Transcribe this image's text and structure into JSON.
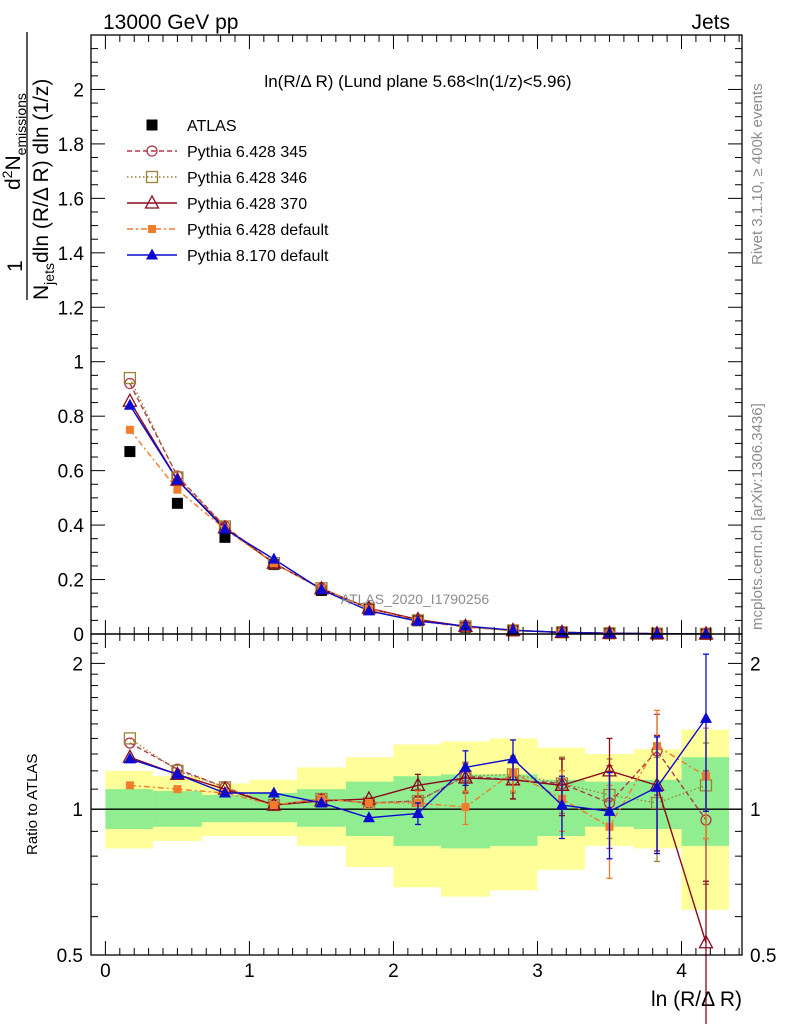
{
  "header": {
    "left": "13000 GeV pp",
    "right": "Jets"
  },
  "side_labels": {
    "rivet": "Rivet 3.1.10, ≥ 400k events",
    "mcplots": "mcplots.cern.ch [arXiv:1306.3436]"
  },
  "watermark": "ATLAS_2020_I1790256",
  "chart_data": [
    {
      "type": "line",
      "title": "ln(R/Δ R) (Lund plane 5.68<ln(1/z)<5.96)",
      "ylabel_parts": {
        "one": "1",
        "njets": "N",
        "njets_sub": "jets",
        "dln": "dln (R/Δ R) dln (1/z)",
        "d2": "d",
        "d2_sup": "2",
        "nem": "N",
        "nem_sub": "emissions"
      },
      "xlim": [
        -0.1,
        4.42
      ],
      "ylim": [
        0,
        2.2
      ],
      "yticks": [
        {
          "v": 0.2,
          "label": "0.2"
        },
        {
          "v": 0.4,
          "label": "0.4"
        },
        {
          "v": 0.6,
          "label": "0.6"
        },
        {
          "v": 0.8,
          "label": "0.8"
        },
        {
          "v": 1.0,
          "label": "1"
        },
        {
          "v": 1.2,
          "label": "1.2"
        },
        {
          "v": 1.4,
          "label": "1.4"
        },
        {
          "v": 1.6,
          "label": "1.6"
        },
        {
          "v": 1.8,
          "label": "1.8"
        },
        {
          "v": 2.0,
          "label": "2"
        },
        {
          "v": 0.0,
          "label": "0"
        }
      ],
      "x": [
        0.17,
        0.5,
        0.83,
        1.17,
        1.5,
        1.83,
        2.17,
        2.5,
        2.83,
        3.17,
        3.5,
        3.83,
        4.17
      ],
      "series": [
        {
          "name": "ATLAS",
          "marker": "square-filled",
          "color": "#000000",
          "dash": "none",
          "values": [
            0.67,
            0.48,
            0.355,
            0.255,
            0.16,
            0.09,
            0.048,
            0.024,
            0.011,
            0.0055,
            0.0025,
            0.0012,
            0.0005
          ]
        },
        {
          "name": "Pythia 6.428 345",
          "marker": "circle-open",
          "color": "#b0384c",
          "dash": "5,3",
          "values": [
            0.92,
            0.58,
            0.395,
            0.26,
            0.168,
            0.093,
            0.05,
            0.028,
            0.013,
            0.0062,
            0.0026,
            0.0016,
            0.0005
          ]
        },
        {
          "name": "Pythia 6.428 346",
          "marker": "square-open",
          "color": "#9c8238",
          "dash": "1.5,2.5",
          "values": [
            0.94,
            0.575,
            0.395,
            0.26,
            0.168,
            0.093,
            0.05,
            0.028,
            0.013,
            0.0062,
            0.0027,
            0.0012,
            0.0006
          ]
        },
        {
          "name": "Pythia 6.428 370",
          "marker": "triangle-open",
          "color": "#8b0a1e",
          "dash": "none",
          "values": [
            0.855,
            0.565,
            0.39,
            0.26,
            0.166,
            0.095,
            0.053,
            0.028,
            0.013,
            0.0062,
            0.003,
            0.0013,
            0.0003
          ]
        },
        {
          "name": "Pythia 6.428 default",
          "marker": "square-filled-small",
          "color": "#f07c2c",
          "dash": "6,3,2,3",
          "values": [
            0.75,
            0.53,
            0.385,
            0.26,
            0.167,
            0.093,
            0.049,
            0.024,
            0.013,
            0.0058,
            0.0023,
            0.0016,
            0.0006
          ]
        },
        {
          "name": "Pythia 8.170 default",
          "marker": "triangle-filled",
          "color": "#0a0ad0",
          "dash": "none",
          "values": [
            0.84,
            0.565,
            0.385,
            0.275,
            0.163,
            0.085,
            0.047,
            0.029,
            0.014,
            0.0055,
            0.0025,
            0.0013,
            0.0008
          ]
        }
      ]
    },
    {
      "type": "line",
      "xlabel": "ln (R/Δ R)",
      "ylabel": "Ratio to ATLAS",
      "xlim": [
        -0.1,
        4.42
      ],
      "ylim": [
        0.5,
        2.3
      ],
      "log_y": true,
      "xticks": [
        {
          "v": 0,
          "label": "0"
        },
        {
          "v": 1,
          "label": "1"
        },
        {
          "v": 2,
          "label": "2"
        },
        {
          "v": 3,
          "label": "3"
        },
        {
          "v": 4,
          "label": "4"
        }
      ],
      "yticks": [
        {
          "v": 0.5,
          "label": "0.5"
        },
        {
          "v": 1,
          "label": "1"
        },
        {
          "v": 2,
          "label": "2"
        }
      ],
      "bin_edges": [
        0.0,
        0.33,
        0.67,
        1.0,
        1.33,
        1.67,
        2.0,
        2.33,
        2.67,
        3.0,
        3.33,
        3.67,
        4.0,
        4.33
      ],
      "band_yellow": [
        [
          0.83,
          1.2
        ],
        [
          0.86,
          1.17
        ],
        [
          0.88,
          1.13
        ],
        [
          0.88,
          1.15
        ],
        [
          0.84,
          1.22
        ],
        [
          0.76,
          1.28
        ],
        [
          0.69,
          1.36
        ],
        [
          0.66,
          1.38
        ],
        [
          0.68,
          1.4
        ],
        [
          0.75,
          1.34
        ],
        [
          0.84,
          1.3
        ],
        [
          0.83,
          1.33
        ],
        [
          0.62,
          1.46
        ]
      ],
      "band_green": [
        [
          0.91,
          1.1
        ],
        [
          0.92,
          1.09
        ],
        [
          0.94,
          1.07
        ],
        [
          0.94,
          1.08
        ],
        [
          0.92,
          1.1
        ],
        [
          0.88,
          1.14
        ],
        [
          0.84,
          1.17
        ],
        [
          0.83,
          1.18
        ],
        [
          0.84,
          1.18
        ],
        [
          0.88,
          1.15
        ],
        [
          0.92,
          1.14
        ],
        [
          0.91,
          1.15
        ],
        [
          0.84,
          1.28
        ]
      ],
      "ratios": [
        {
          "name": "Pythia 6.428 345",
          "values": [
            1.37,
            1.21,
            1.11,
            1.02,
            1.05,
            1.03,
            1.04,
            1.17,
            1.15,
            1.13,
            1.03,
            1.32,
            0.95
          ],
          "err": [
            0.02,
            0.02,
            0.02,
            0.02,
            0.03,
            0.04,
            0.06,
            0.08,
            0.1,
            0.15,
            0.2,
            0.25,
            0.25
          ]
        },
        {
          "name": "Pythia 6.428 346",
          "values": [
            1.4,
            1.2,
            1.11,
            1.02,
            1.05,
            1.03,
            1.04,
            1.17,
            1.18,
            1.13,
            1.07,
            1.03,
            1.12
          ],
          "err": [
            0.02,
            0.02,
            0.02,
            0.02,
            0.03,
            0.04,
            0.06,
            0.08,
            0.1,
            0.15,
            0.2,
            0.25,
            0.25
          ]
        },
        {
          "name": "Pythia 6.428 370",
          "values": [
            1.28,
            1.18,
            1.1,
            1.02,
            1.04,
            1.05,
            1.12,
            1.16,
            1.15,
            1.12,
            1.2,
            1.12,
            0.53
          ],
          "err": [
            0.02,
            0.02,
            0.02,
            0.02,
            0.03,
            0.04,
            0.06,
            0.08,
            0.1,
            0.15,
            0.2,
            0.3,
            0.18
          ]
        },
        {
          "name": "Pythia 6.428 default",
          "values": [
            1.12,
            1.1,
            1.08,
            1.02,
            1.05,
            1.03,
            1.03,
            1.01,
            1.19,
            1.05,
            0.92,
            1.35,
            1.17
          ],
          "err": [
            0.02,
            0.02,
            0.02,
            0.02,
            0.03,
            0.04,
            0.06,
            0.08,
            0.1,
            0.15,
            0.2,
            0.25,
            0.3
          ]
        },
        {
          "name": "Pythia 8.170 default",
          "values": [
            1.27,
            1.18,
            1.08,
            1.08,
            1.03,
            0.96,
            0.98,
            1.22,
            1.27,
            1.02,
            0.99,
            1.11,
            1.54
          ],
          "err": [
            0.02,
            0.02,
            0.02,
            0.02,
            0.03,
            0.04,
            0.05,
            0.1,
            0.12,
            0.15,
            0.2,
            0.3,
            0.55
          ]
        }
      ]
    }
  ]
}
